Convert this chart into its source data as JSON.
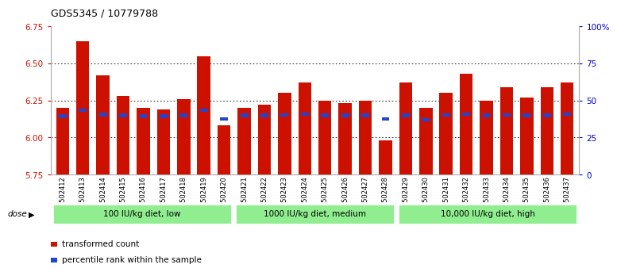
{
  "title": "GDS5345 / 10779788",
  "samples": [
    "GSM1502412",
    "GSM1502413",
    "GSM1502414",
    "GSM1502415",
    "GSM1502416",
    "GSM1502417",
    "GSM1502418",
    "GSM1502419",
    "GSM1502420",
    "GSM1502421",
    "GSM1502422",
    "GSM1502423",
    "GSM1502424",
    "GSM1502425",
    "GSM1502426",
    "GSM1502427",
    "GSM1502428",
    "GSM1502429",
    "GSM1502430",
    "GSM1502431",
    "GSM1502432",
    "GSM1502433",
    "GSM1502434",
    "GSM1502435",
    "GSM1502436",
    "GSM1502437"
  ],
  "red_values": [
    6.2,
    6.65,
    6.42,
    6.28,
    6.2,
    6.19,
    6.26,
    6.55,
    6.08,
    6.2,
    6.22,
    6.3,
    6.37,
    6.25,
    6.23,
    6.25,
    5.98,
    6.37,
    6.2,
    6.3,
    6.43,
    6.25,
    6.34,
    6.27,
    6.34,
    6.37
  ],
  "blue_values": [
    6.145,
    6.185,
    6.155,
    6.15,
    6.145,
    6.145,
    6.15,
    6.185,
    6.125,
    6.15,
    6.15,
    6.152,
    6.158,
    6.15,
    6.148,
    6.148,
    6.125,
    6.15,
    6.12,
    6.152,
    6.158,
    6.15,
    6.152,
    6.15,
    6.15,
    6.158
  ],
  "ylim": [
    5.75,
    6.75
  ],
  "yticks": [
    5.75,
    6.0,
    6.25,
    6.5,
    6.75
  ],
  "right_yticks": [
    0,
    25,
    50,
    75,
    100
  ],
  "right_yticklabels": [
    "0",
    "25",
    "50",
    "75",
    "100%"
  ],
  "base": 5.75,
  "groups": [
    {
      "label": "100 IU/kg diet, low",
      "start": 0,
      "end": 9
    },
    {
      "label": "1000 IU/kg diet, medium",
      "start": 9,
      "end": 17
    },
    {
      "label": "10,000 IU/kg diet, high",
      "start": 17,
      "end": 26
    }
  ],
  "red_color": "#cc1100",
  "blue_color": "#2244cc",
  "bar_width": 0.65,
  "bg_color": "#ffffff",
  "plot_bg": "#ffffff",
  "group_bg": "#90ee90",
  "axis_area_bg": "#f0f0f0",
  "left_tick_color": "#cc1100",
  "right_tick_color": "#0000cc"
}
